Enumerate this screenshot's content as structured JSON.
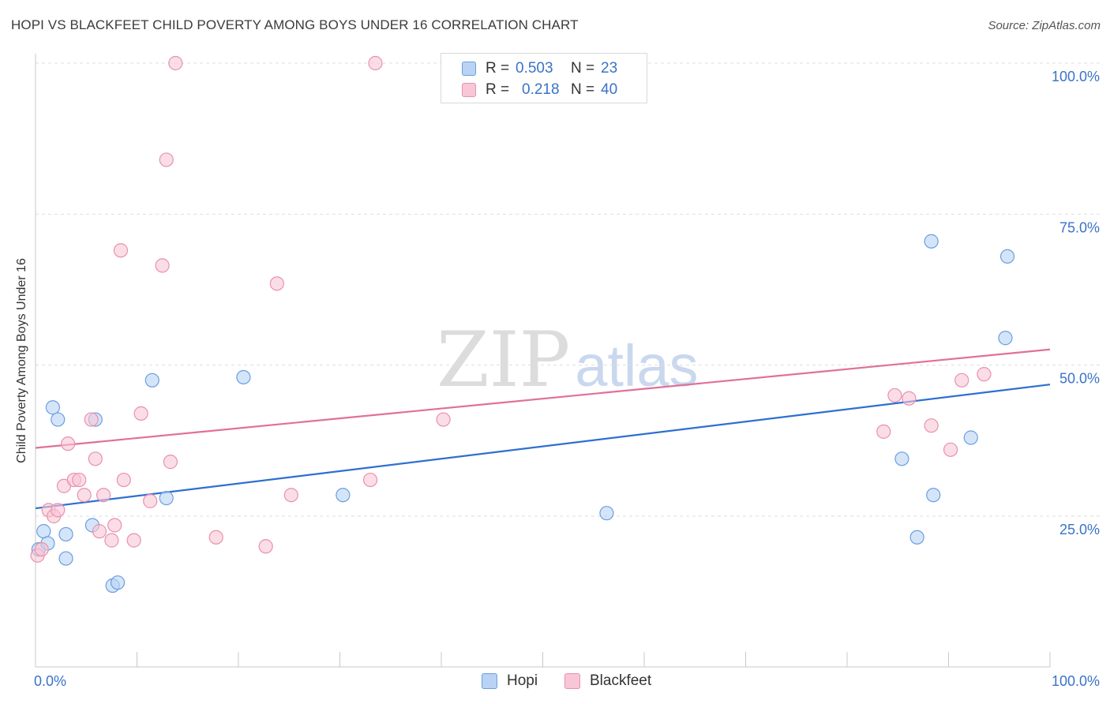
{
  "header": {
    "title": "HOPI VS BLACKFEET CHILD POVERTY AMONG BOYS UNDER 16 CORRELATION CHART",
    "source": "Source: ZipAtlas.com"
  },
  "watermark": {
    "zip": "ZIP",
    "atlas": "atlas"
  },
  "legend": {
    "rows": [
      {
        "r_label": "R =",
        "r_value": "0.503",
        "n_label": "N =",
        "n_value": "23"
      },
      {
        "r_label": "R =",
        "r_value": "0.218",
        "n_label": "N =",
        "n_value": "40"
      }
    ]
  },
  "bottom_legend": {
    "hopi": "Hopi",
    "blackfeet": "Blackfeet"
  },
  "colors": {
    "hopi_fill": "#b9d3f5",
    "hopi_stroke": "#6a9ee0",
    "hopi_line": "#2e6fd0",
    "blackfeet_fill": "#f8c6d6",
    "blackfeet_stroke": "#e891ae",
    "blackfeet_line": "#e0709a",
    "tick_label": "#3a72c8"
  },
  "chart_data": {
    "type": "scatter",
    "title": "HOPI VS BLACKFEET CHILD POVERTY AMONG BOYS UNDER 16 CORRELATION CHART",
    "xlabel": "",
    "ylabel": "Child Poverty Among Boys Under 16",
    "xlim": [
      0,
      100
    ],
    "ylim": [
      0,
      105
    ],
    "x_tick_labels": [
      "0.0%",
      "100.0%"
    ],
    "y_ticks": [
      25,
      50,
      75,
      100
    ],
    "y_tick_labels": [
      "25.0%",
      "50.0%",
      "75.0%",
      "100.0%"
    ],
    "grid": true,
    "series": [
      {
        "name": "Hopi",
        "points": [
          [
            0.3,
            19.5
          ],
          [
            0.8,
            22.5
          ],
          [
            1.2,
            20.5
          ],
          [
            1.7,
            43
          ],
          [
            2.2,
            41
          ],
          [
            3.0,
            22
          ],
          [
            3.0,
            18
          ],
          [
            5.6,
            23.5
          ],
          [
            5.9,
            41
          ],
          [
            7.6,
            13.5
          ],
          [
            8.1,
            14
          ],
          [
            11.5,
            47.5
          ],
          [
            12.9,
            28
          ],
          [
            20.5,
            48
          ],
          [
            30.3,
            28.5
          ],
          [
            56.3,
            25.5
          ],
          [
            85.4,
            34.5
          ],
          [
            86.9,
            21.5
          ],
          [
            88.3,
            70.5
          ],
          [
            88.5,
            28.5
          ],
          [
            92.2,
            38
          ],
          [
            95.6,
            54.5
          ],
          [
            95.8,
            68
          ]
        ],
        "trend": {
          "x": [
            0,
            100
          ],
          "y": [
            26.3,
            46.8
          ]
        }
      },
      {
        "name": "Blackfeet",
        "points": [
          [
            0.2,
            18.5
          ],
          [
            0.6,
            19.5
          ],
          [
            1.3,
            26
          ],
          [
            1.8,
            25
          ],
          [
            2.2,
            26
          ],
          [
            2.8,
            30
          ],
          [
            3.2,
            37
          ],
          [
            3.8,
            31
          ],
          [
            4.3,
            31
          ],
          [
            4.8,
            28.5
          ],
          [
            5.5,
            41
          ],
          [
            5.9,
            34.5
          ],
          [
            6.3,
            22.5
          ],
          [
            6.7,
            28.5
          ],
          [
            7.5,
            21
          ],
          [
            7.8,
            23.5
          ],
          [
            8.7,
            31
          ],
          [
            9.7,
            21
          ],
          [
            10.4,
            42
          ],
          [
            11.3,
            27.5
          ],
          [
            12.5,
            66.5
          ],
          [
            12.9,
            84
          ],
          [
            13.3,
            34
          ],
          [
            13.8,
            100
          ],
          [
            17.8,
            21.5
          ],
          [
            22.7,
            20
          ],
          [
            25.2,
            28.5
          ],
          [
            33.0,
            31
          ],
          [
            33.5,
            100
          ],
          [
            40.2,
            41
          ],
          [
            84.7,
            45
          ],
          [
            83.6,
            39
          ],
          [
            86.1,
            44.5
          ],
          [
            88.3,
            40
          ],
          [
            90.2,
            36
          ],
          [
            91.3,
            47.5
          ],
          [
            93.5,
            48.5
          ],
          [
            8.4,
            69
          ],
          [
            23.8,
            63.5
          ],
          [
            46.5,
            100
          ]
        ],
        "trend": {
          "x": [
            0,
            100
          ],
          "y": [
            36.3,
            52.6
          ]
        }
      }
    ]
  }
}
